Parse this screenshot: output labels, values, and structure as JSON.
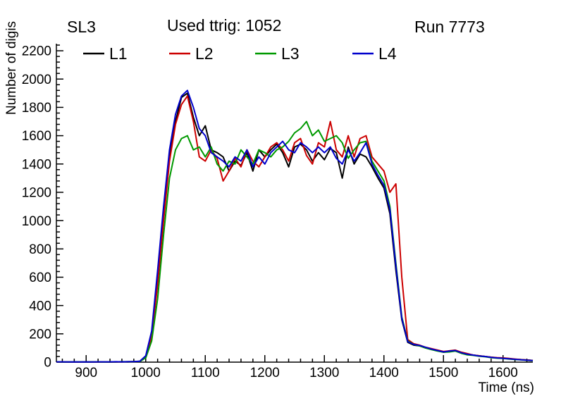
{
  "header": {
    "left": "SL3",
    "center": "Used ttrig: 1052",
    "right": "Run 7773"
  },
  "axes": {
    "x_label": "Time (ns)",
    "y_label": "Number of digis"
  },
  "chart_data": {
    "type": "line",
    "title": "Used ttrig: 1052",
    "subtitle_left": "SL3",
    "subtitle_right": "Run 7773",
    "xlabel": "Time (ns)",
    "ylabel": "Number of digis",
    "xlim": [
      850,
      1650
    ],
    "ylim": [
      0,
      2250
    ],
    "grid": false,
    "legend_position": "top-inside-horizontal",
    "xticks": [
      900,
      1000,
      1100,
      1200,
      1300,
      1400,
      1500,
      1600
    ],
    "yticks": [
      0,
      200,
      400,
      600,
      800,
      1000,
      1200,
      1400,
      1600,
      1800,
      2000,
      2200
    ],
    "x": [
      850,
      860,
      870,
      880,
      890,
      900,
      910,
      920,
      930,
      940,
      950,
      960,
      970,
      980,
      990,
      1000,
      1010,
      1020,
      1030,
      1040,
      1050,
      1060,
      1070,
      1080,
      1090,
      1100,
      1110,
      1120,
      1130,
      1140,
      1150,
      1160,
      1170,
      1180,
      1190,
      1200,
      1210,
      1220,
      1230,
      1240,
      1250,
      1260,
      1270,
      1280,
      1290,
      1300,
      1310,
      1320,
      1330,
      1340,
      1350,
      1360,
      1370,
      1380,
      1390,
      1400,
      1410,
      1420,
      1430,
      1440,
      1450,
      1460,
      1470,
      1480,
      1490,
      1500,
      1510,
      1520,
      1530,
      1540,
      1550,
      1560,
      1570,
      1580,
      1590,
      1600,
      1610,
      1620,
      1630,
      1640,
      1650
    ],
    "series": [
      {
        "name": "L1",
        "color": "#000000",
        "values": [
          2,
          1,
          2,
          1,
          2,
          2,
          1,
          2,
          2,
          1,
          2,
          3,
          2,
          4,
          6,
          40,
          200,
          600,
          1050,
          1450,
          1700,
          1870,
          1900,
          1730,
          1600,
          1670,
          1500,
          1480,
          1450,
          1350,
          1420,
          1390,
          1480,
          1350,
          1500,
          1450,
          1500,
          1540,
          1480,
          1380,
          1520,
          1540,
          1500,
          1420,
          1480,
          1430,
          1510,
          1480,
          1300,
          1520,
          1400,
          1470,
          1450,
          1380,
          1300,
          1230,
          1050,
          650,
          300,
          140,
          120,
          115,
          100,
          90,
          80,
          70,
          75,
          80,
          65,
          55,
          50,
          45,
          40,
          35,
          30,
          28,
          25,
          20,
          18,
          15,
          12
        ]
      },
      {
        "name": "L2",
        "color": "#cc0000",
        "values": [
          1,
          2,
          1,
          2,
          1,
          1,
          2,
          1,
          2,
          2,
          2,
          2,
          3,
          4,
          5,
          35,
          180,
          550,
          1000,
          1420,
          1680,
          1820,
          1880,
          1700,
          1450,
          1420,
          1500,
          1440,
          1280,
          1350,
          1440,
          1380,
          1500,
          1420,
          1380,
          1450,
          1520,
          1550,
          1500,
          1420,
          1550,
          1580,
          1460,
          1400,
          1550,
          1520,
          1700,
          1500,
          1450,
          1600,
          1450,
          1580,
          1600,
          1450,
          1400,
          1350,
          1200,
          1260,
          600,
          160,
          130,
          120,
          105,
          95,
          85,
          75,
          80,
          85,
          70,
          60,
          50,
          45,
          40,
          35,
          32,
          30,
          26,
          22,
          18,
          15,
          12
        ]
      },
      {
        "name": "L3",
        "color": "#009900",
        "values": [
          2,
          1,
          1,
          2,
          2,
          1,
          2,
          2,
          1,
          2,
          2,
          3,
          3,
          4,
          5,
          30,
          150,
          450,
          900,
          1300,
          1500,
          1580,
          1600,
          1500,
          1520,
          1450,
          1520,
          1400,
          1350,
          1420,
          1400,
          1500,
          1450,
          1400,
          1500,
          1480,
          1450,
          1500,
          1520,
          1560,
          1620,
          1650,
          1700,
          1600,
          1640,
          1560,
          1580,
          1600,
          1550,
          1440,
          1500,
          1550,
          1560,
          1420,
          1350,
          1280,
          1100,
          700,
          320,
          150,
          125,
          115,
          100,
          88,
          78,
          70,
          72,
          78,
          62,
          52,
          48,
          42,
          38,
          32,
          28,
          26,
          22,
          19,
          16,
          13,
          10
        ]
      },
      {
        "name": "L4",
        "color": "#0000cc",
        "values": [
          2,
          2,
          1,
          2,
          1,
          2,
          1,
          2,
          2,
          2,
          3,
          2,
          3,
          4,
          6,
          45,
          220,
          650,
          1100,
          1500,
          1750,
          1880,
          1920,
          1800,
          1650,
          1600,
          1480,
          1450,
          1420,
          1380,
          1450,
          1420,
          1500,
          1380,
          1450,
          1400,
          1480,
          1520,
          1560,
          1500,
          1480,
          1550,
          1520,
          1480,
          1520,
          1480,
          1520,
          1440,
          1400,
          1500,
          1420,
          1480,
          1550,
          1400,
          1320,
          1250,
          1080,
          680,
          310,
          145,
          125,
          118,
          105,
          92,
          82,
          72,
          78,
          82,
          66,
          56,
          50,
          44,
          40,
          34,
          30,
          27,
          24,
          20,
          17,
          14,
          11
        ]
      }
    ]
  }
}
